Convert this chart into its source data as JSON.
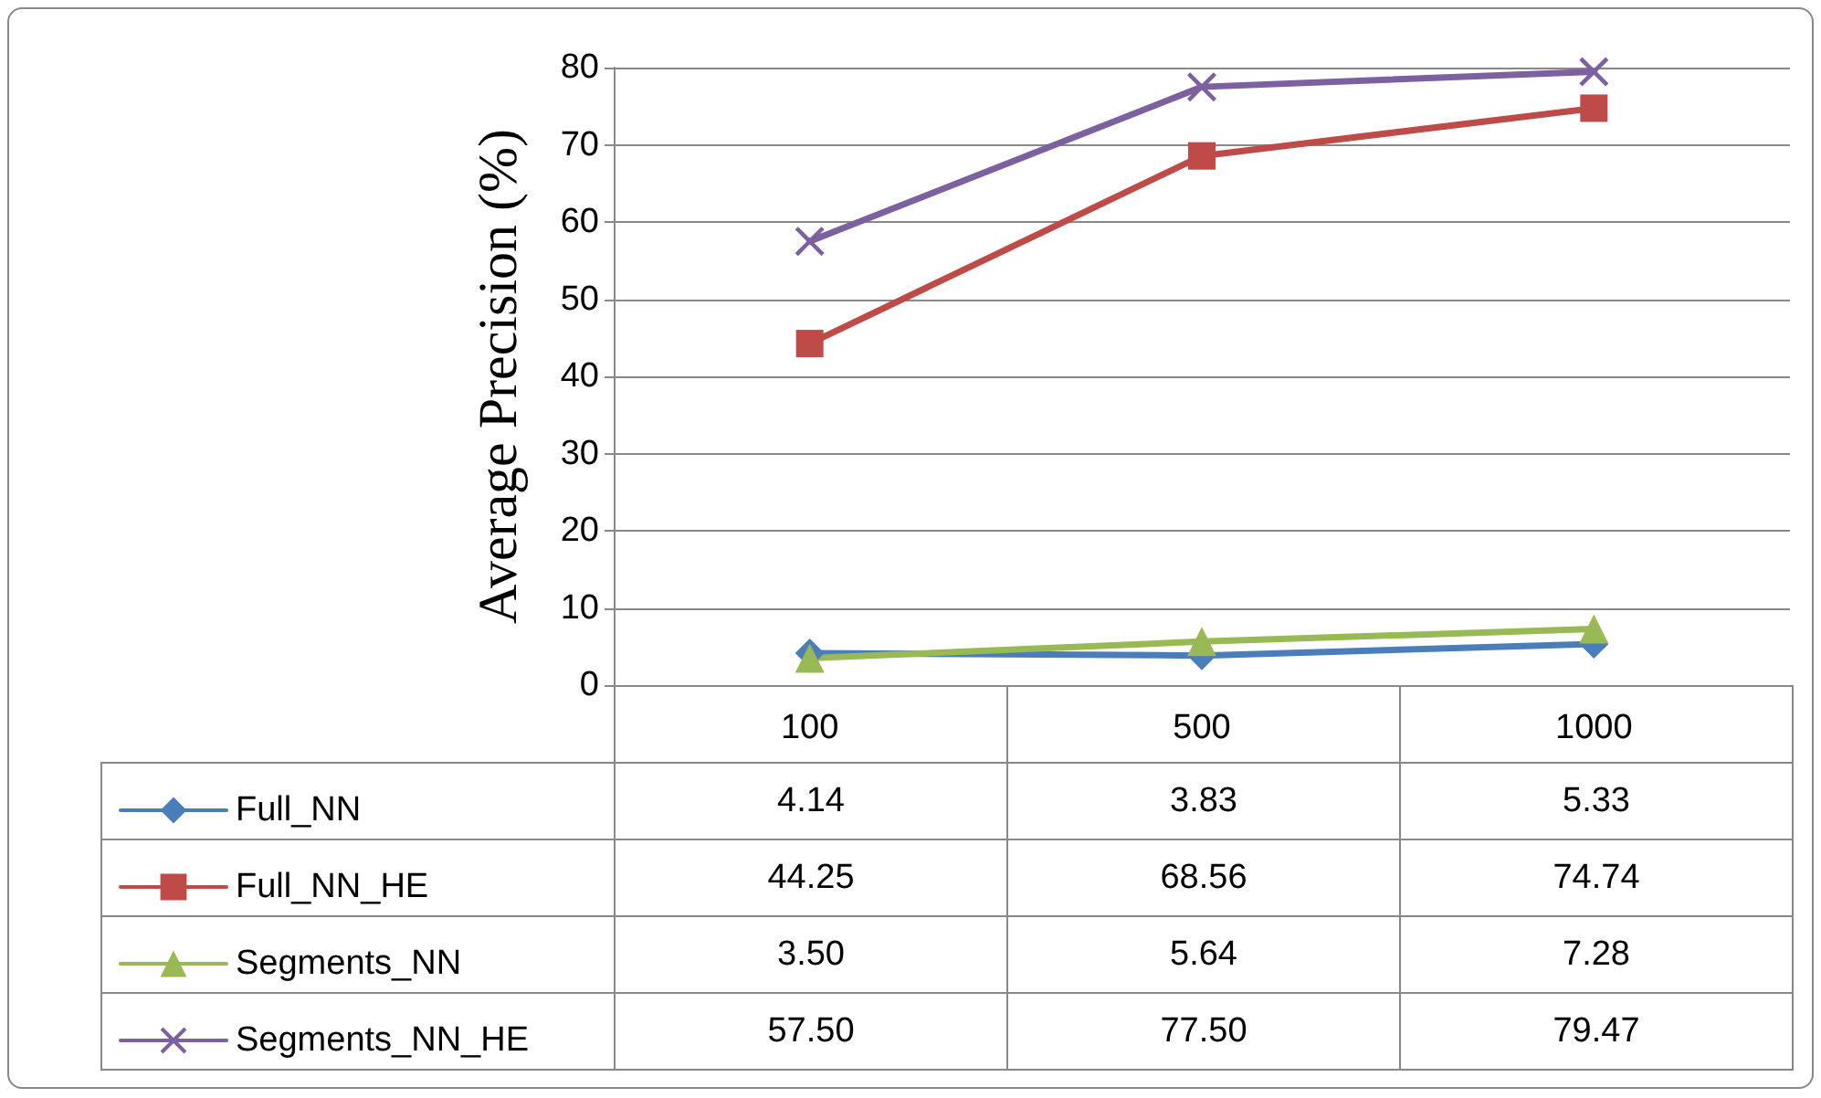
{
  "chart_data": {
    "type": "line",
    "ylabel": "Average Precision (%)",
    "categories": [
      "100",
      "500",
      "1000"
    ],
    "ylim": [
      0,
      80
    ],
    "yticks": [
      0,
      10,
      20,
      30,
      40,
      50,
      60,
      70,
      80
    ],
    "grid": "y",
    "legend": "bottom left",
    "line_style": "solid",
    "series": [
      {
        "name": "Full_NN",
        "color": "#4a7ebb",
        "marker": "diamond",
        "values": [
          4.14,
          3.83,
          5.33
        ],
        "value_labels": [
          "4.14",
          "3.83",
          "5.33"
        ]
      },
      {
        "name": "Full_NN_HE",
        "color": "#be4b48",
        "marker": "square",
        "values": [
          44.25,
          68.56,
          74.74
        ],
        "value_labels": [
          "44.25",
          "68.56",
          "74.74"
        ]
      },
      {
        "name": "Segments_NN",
        "color": "#98b954",
        "marker": "triangle",
        "values": [
          3.5,
          5.64,
          7.28
        ],
        "value_labels": [
          "3.50",
          "5.64",
          "7.28"
        ]
      },
      {
        "name": "Segments_NN_HE",
        "color": "#7d60a0",
        "marker": "cross",
        "values": [
          57.5,
          77.5,
          79.47
        ],
        "value_labels": [
          "57.50",
          "77.50",
          "79.47"
        ]
      }
    ]
  }
}
